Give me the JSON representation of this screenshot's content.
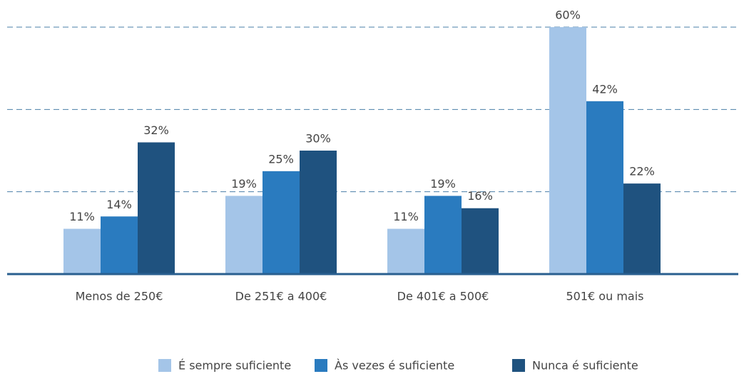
{
  "chart_data": {
    "type": "bar",
    "categories": [
      "Menos de 250€",
      "De 251€ a 400€",
      "De 401€ a 500€",
      "501€ ou mais"
    ],
    "series": [
      {
        "name": "É sempre suficiente",
        "color": "#a4c5e8",
        "values": [
          11,
          19,
          11,
          60
        ],
        "value_labels": [
          "11%",
          "19%",
          "11%",
          "60%"
        ]
      },
      {
        "name": "Às vezes é suficiente",
        "color": "#2a7bbf",
        "values": [
          14,
          25,
          19,
          42
        ],
        "value_labels": [
          "14%",
          "25%",
          "19%",
          "42%"
        ]
      },
      {
        "name": "Nunca é suficiente",
        "color": "#1f527f",
        "values": [
          32,
          30,
          16,
          22
        ],
        "value_labels": [
          "32%",
          "30%",
          "16%",
          "22%"
        ]
      }
    ],
    "ylim": [
      0,
      60
    ],
    "yticks": [
      20,
      40,
      60
    ],
    "grid": true,
    "legend": "bottom"
  }
}
